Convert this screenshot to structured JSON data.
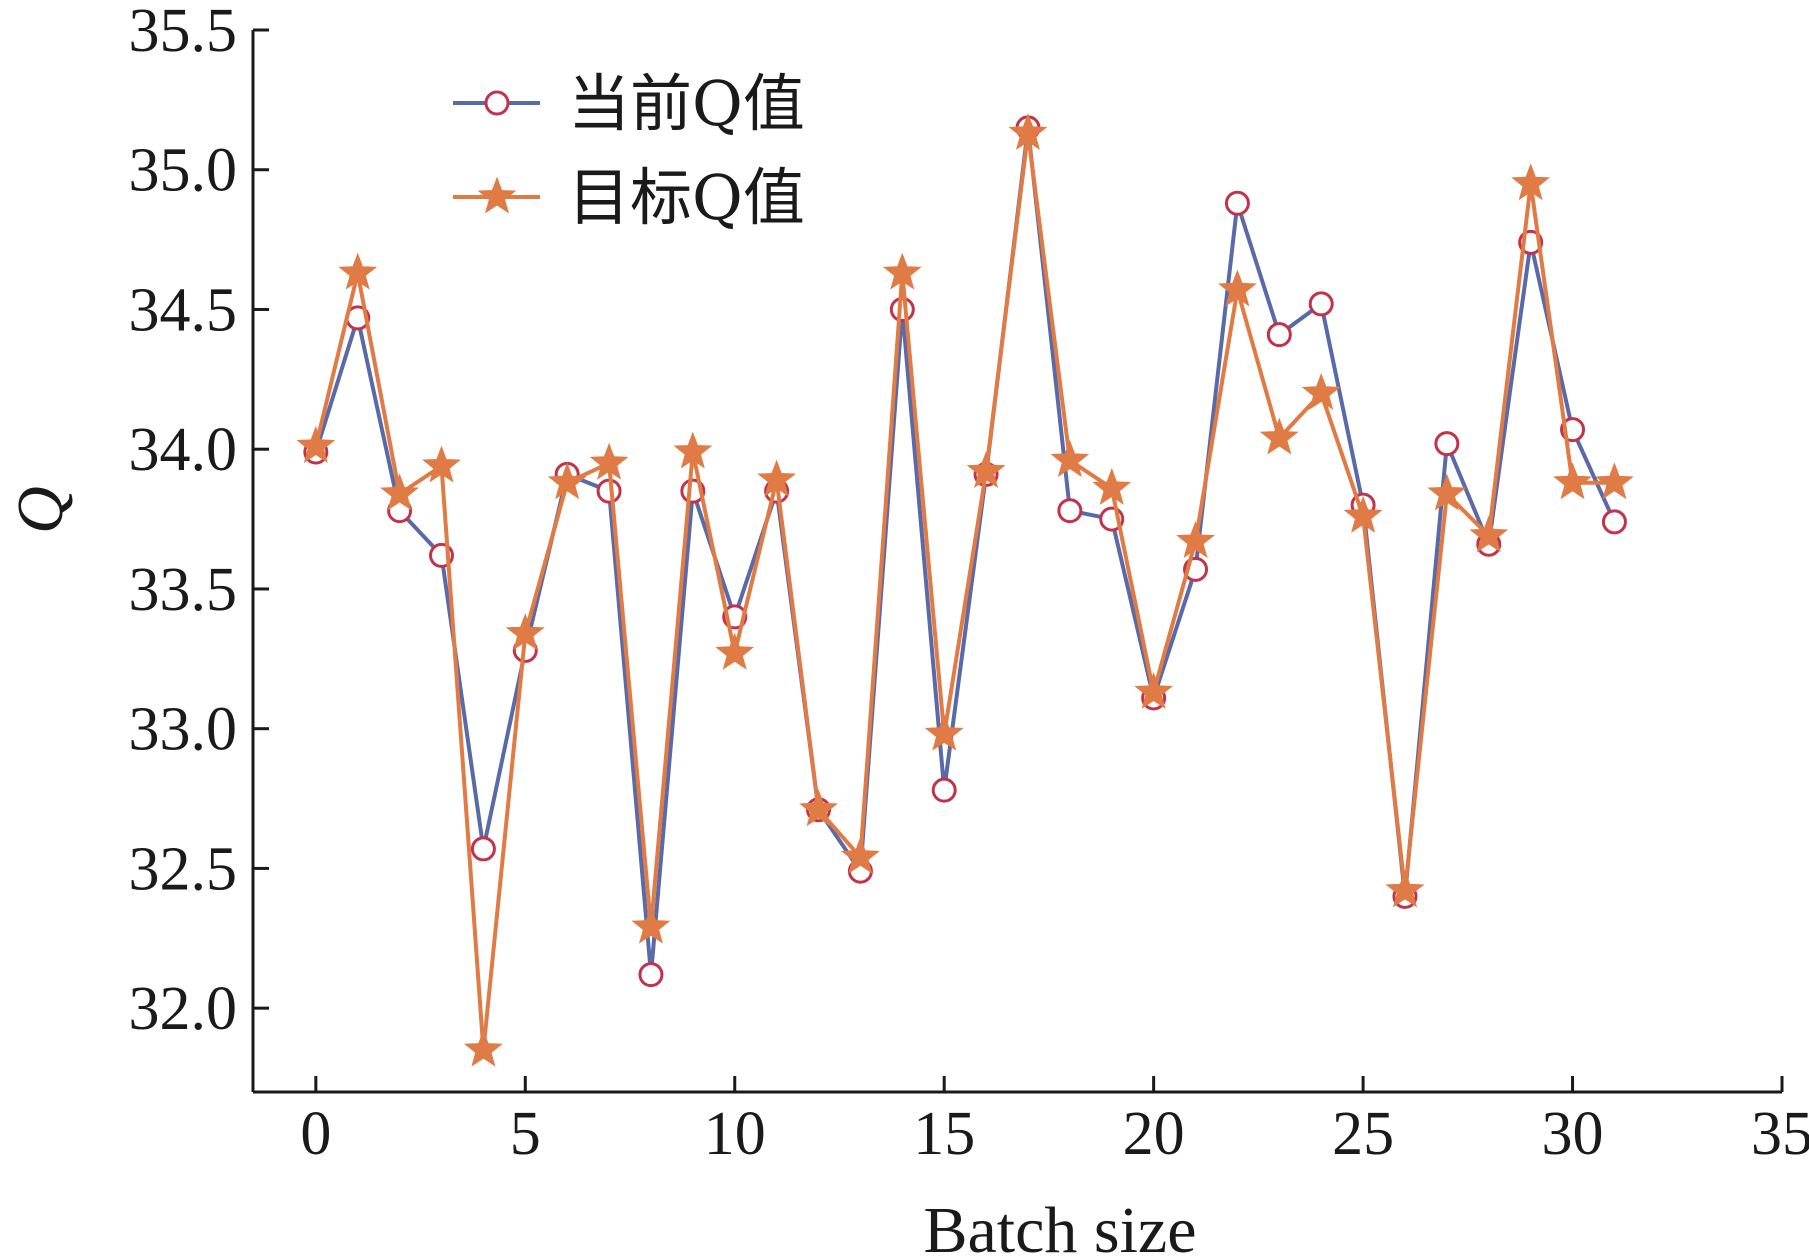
{
  "chart_data": {
    "type": "line",
    "xlabel": "Batch size",
    "ylabel": "Q",
    "xlim": [
      -1.5,
      35
    ],
    "ylim": [
      31.7,
      35.5
    ],
    "xticks": [
      0,
      5,
      10,
      15,
      20,
      25,
      30,
      35
    ],
    "yticks": [
      32.0,
      32.5,
      33.0,
      33.5,
      34.0,
      34.5,
      35.0,
      35.5
    ],
    "ytick_labels": [
      "32.0",
      "32.5",
      "33.0",
      "33.5",
      "34.0",
      "34.5",
      "35.0",
      "35.5"
    ],
    "grid": false,
    "legend_position": "top-left",
    "x": [
      0,
      1,
      2,
      3,
      4,
      5,
      6,
      7,
      8,
      9,
      10,
      11,
      12,
      13,
      14,
      15,
      16,
      17,
      18,
      19,
      20,
      21,
      22,
      23,
      24,
      25,
      26,
      27,
      28,
      29,
      30,
      31
    ],
    "series": [
      {
        "name": "当前Q值",
        "color": "#5a6aa8",
        "marker": "circle",
        "values": [
          33.99,
          34.47,
          33.78,
          33.62,
          32.57,
          33.28,
          33.91,
          33.85,
          32.12,
          33.85,
          33.4,
          33.85,
          32.71,
          32.49,
          34.5,
          32.78,
          33.91,
          35.15,
          33.78,
          33.75,
          33.11,
          33.57,
          34.88,
          34.41,
          34.52,
          33.8,
          32.4,
          34.02,
          33.66,
          34.74,
          34.07,
          33.74
        ]
      },
      {
        "name": "目标Q值",
        "color": "#e07b45",
        "marker": "star",
        "values": [
          34.01,
          34.63,
          33.84,
          33.94,
          31.85,
          33.34,
          33.88,
          33.95,
          32.29,
          33.99,
          33.27,
          33.89,
          32.71,
          32.54,
          34.63,
          32.98,
          33.92,
          35.13,
          33.96,
          33.86,
          33.13,
          33.67,
          34.57,
          34.04,
          34.2,
          33.76,
          32.42,
          33.84,
          33.69,
          34.95,
          33.88,
          33.88
        ]
      }
    ]
  }
}
